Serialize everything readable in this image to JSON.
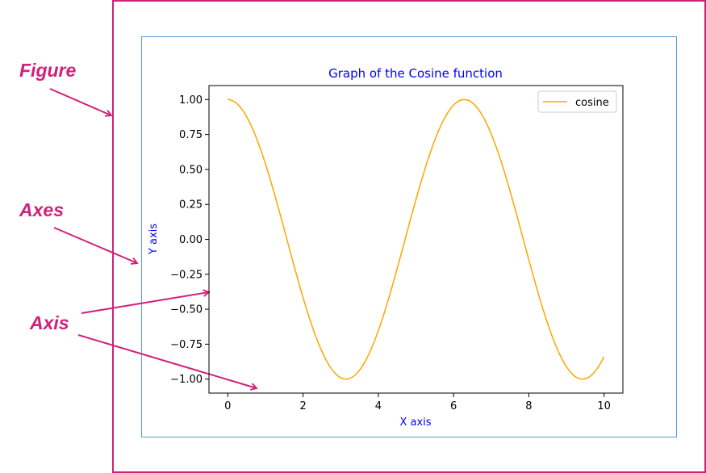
{
  "annotations": {
    "figure_label": "Figure",
    "axes_label": "Axes",
    "axis_label": "Axis",
    "color": "#d0217a"
  },
  "colors": {
    "figure_border": "#d0217a",
    "axes_border": "#5b9bd5",
    "title_color": "#0000ff",
    "label_color": "#0000ff",
    "line_color": "#ffa500"
  },
  "chart_data": {
    "type": "line",
    "title": "Graph of the Cosine function",
    "xlabel": "X axis",
    "ylabel": "Y axis",
    "xlim": [
      -0.5,
      10.5
    ],
    "ylim": [
      -1.1,
      1.1
    ],
    "xticks": [
      0,
      2,
      4,
      6,
      8,
      10
    ],
    "xtick_labels": [
      "0",
      "2",
      "4",
      "6",
      "8",
      "10"
    ],
    "yticks": [
      1.0,
      0.75,
      0.5,
      0.25,
      0.0,
      -0.25,
      -0.5,
      -0.75,
      -1.0
    ],
    "ytick_labels": [
      "1.00",
      "0.75",
      "0.50",
      "0.25",
      "0.00",
      "−0.25",
      "−0.50",
      "−0.75",
      "−1.00"
    ],
    "legend_position": "top-right",
    "grid": false,
    "series": [
      {
        "name": "cosine",
        "function": "cos(x)",
        "x": [
          0,
          0.5,
          1,
          1.5,
          2,
          2.5,
          3,
          3.5,
          4,
          4.5,
          5,
          5.5,
          6,
          6.5,
          7,
          7.5,
          8,
          8.5,
          9,
          9.5,
          10
        ],
        "values": [
          1.0,
          0.878,
          0.54,
          0.071,
          -0.416,
          -0.801,
          -0.99,
          -0.936,
          -0.654,
          -0.211,
          0.284,
          0.709,
          0.96,
          0.977,
          0.754,
          0.347,
          -0.146,
          -0.602,
          -0.911,
          -0.997,
          -0.839
        ]
      }
    ]
  }
}
